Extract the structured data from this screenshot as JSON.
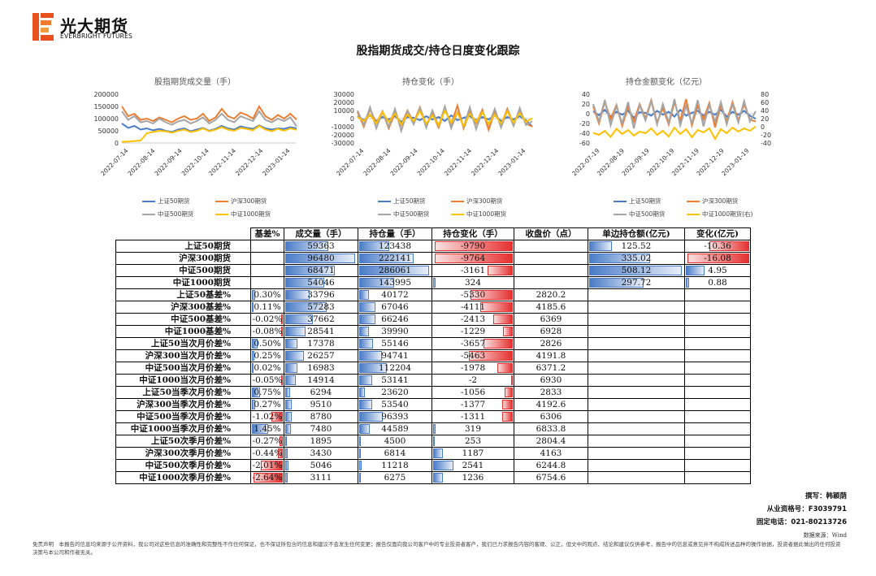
{
  "logo": {
    "cn": "光大期货",
    "en": "EVERBRIGHT FUTURES"
  },
  "title": "股指期货成交/持仓日度变化跟踪",
  "colors": {
    "sz50": "#4a7cc7",
    "hs300": "#ed7d31",
    "zz500": "#a5a5a5",
    "zz1000": "#ffc000",
    "pos": "#4a7cc7",
    "neg": "#e53030"
  },
  "chart_data": [
    {
      "type": "line",
      "title": "股指期货成交量（手）",
      "yticks": [
        "200000",
        "150000",
        "100000",
        "50000",
        "0"
      ],
      "ylim": [
        0,
        200000
      ],
      "xticks": [
        "2022-07-14",
        "2022-08-14",
        "2022-09-14",
        "2022-10-14",
        "2022-11-14",
        "2022-12-14",
        "2023-01-14"
      ],
      "series": [
        {
          "name": "上证50期货",
          "values": [
            80000,
            62000,
            70000,
            55000,
            60000,
            52000,
            58000,
            50000,
            45000,
            55000,
            60000,
            48000,
            55000,
            62000,
            50000,
            58000,
            70000,
            60000,
            55000,
            68000,
            62000,
            58000,
            72000,
            60000,
            55000,
            60000,
            58000,
            65000,
            60000
          ]
        },
        {
          "name": "沪深300期货",
          "values": [
            150000,
            110000,
            120000,
            95000,
            100000,
            90000,
            105000,
            95000,
            85000,
            100000,
            110000,
            95000,
            100000,
            120000,
            90000,
            105000,
            140000,
            110000,
            100000,
            125000,
            115000,
            100000,
            150000,
            110000,
            95000,
            115000,
            100000,
            120000,
            96000
          ]
        },
        {
          "name": "中证500期货",
          "values": [
            130000,
            95000,
            110000,
            85000,
            90000,
            80000,
            100000,
            85000,
            75000,
            88000,
            95000,
            80000,
            90000,
            105000,
            80000,
            95000,
            120000,
            95000,
            85000,
            110000,
            100000,
            90000,
            130000,
            95000,
            85000,
            100000,
            90000,
            105000,
            68000
          ]
        },
        {
          "name": "中证1000期货",
          "values": [
            5000,
            6000,
            8000,
            10000,
            40000,
            45000,
            50000,
            48000,
            42000,
            50000,
            55000,
            45000,
            50000,
            60000,
            48000,
            55000,
            65000,
            55000,
            50000,
            62000,
            58000,
            52000,
            70000,
            55000,
            48000,
            58000,
            50000,
            60000,
            54000
          ]
        }
      ],
      "legend": [
        "上证50期货",
        "沪深300期货",
        "中证500期货",
        "中证1000期货"
      ]
    },
    {
      "type": "line",
      "title": "持仓变化（手）",
      "yticks": [
        "30000",
        "20000",
        "10000",
        "0",
        "-10000",
        "-20000",
        "-30000"
      ],
      "ylim": [
        -30000,
        30000
      ],
      "xticks": [
        "2022-07-14",
        "2022-08-14",
        "2022-09-14",
        "2022-10-14",
        "2022-11-14",
        "2022-12-14",
        "2023-01-14"
      ],
      "series": [
        {
          "name": "上证50期货",
          "values": [
            3000,
            -2000,
            4000,
            -3000,
            2000,
            -1000,
            3000,
            -4000,
            2000,
            1000,
            -2000,
            3000,
            -1000,
            2000,
            -3000,
            4000,
            -2000,
            1000,
            3000,
            -2000,
            2000,
            -1000,
            4000,
            -3000,
            2000,
            -1000,
            3000,
            -2000,
            -9790
          ]
        },
        {
          "name": "沪深300期货",
          "values": [
            8000,
            -10000,
            12000,
            -6000,
            9000,
            -12000,
            7000,
            -8000,
            10000,
            -5000,
            14000,
            -9000,
            6000,
            -11000,
            12000,
            -7000,
            16000,
            -12000,
            8000,
            -6000,
            11000,
            -14000,
            9000,
            -8000,
            12000,
            -7000,
            10000,
            -6000,
            -9764
          ]
        },
        {
          "name": "中证500期货",
          "values": [
            10000,
            -8000,
            14000,
            -12000,
            8000,
            -10000,
            12000,
            -15000,
            9000,
            -7000,
            13000,
            -11000,
            10000,
            -9000,
            15000,
            -12000,
            8000,
            -10000,
            14000,
            -13000,
            9000,
            -8000,
            12000,
            -11000,
            10000,
            -9000,
            13000,
            -8000,
            -3161
          ]
        },
        {
          "name": "中证1000期货",
          "values": [
            2000,
            -3000,
            5000,
            -6000,
            8000,
            -4000,
            6000,
            -7000,
            5000,
            -3000,
            9000,
            -6000,
            4000,
            -8000,
            10000,
            -5000,
            7000,
            -9000,
            6000,
            -4000,
            8000,
            -7000,
            5000,
            -6000,
            9000,
            -5000,
            7000,
            -4000,
            324
          ]
        }
      ],
      "legend": [
        "上证50期货",
        "沪深300期货",
        "中证500期货",
        "中证1000期货"
      ]
    },
    {
      "type": "line",
      "title": "持仓金额变化（亿元）",
      "yticks": [
        "40",
        "20",
        "0",
        "-20",
        "-40",
        "-60"
      ],
      "ylim": [
        -60,
        40
      ],
      "y2ticks": [
        "80",
        "60",
        "40",
        "20",
        "0",
        "-20",
        "-40"
      ],
      "y2lim": [
        -40,
        80
      ],
      "xticks": [
        "2022-07-19",
        "2022-08-19",
        "2022-09-19",
        "2022-10-19",
        "2022-11-19",
        "2022-12-19",
        "2023-01-19"
      ],
      "series": [
        {
          "name": "上证50期货",
          "values": [
            5,
            -3,
            8,
            -6,
            4,
            -2,
            6,
            -8,
            3,
            2,
            -4,
            6,
            -2,
            4,
            -6,
            8,
            -4,
            2,
            6,
            -4,
            4,
            -2,
            8,
            -6,
            4,
            -2,
            6,
            -4,
            -10.36
          ]
        },
        {
          "name": "沪深300期货",
          "values": [
            15,
            -20,
            25,
            -12,
            18,
            -25,
            14,
            -16,
            20,
            -10,
            28,
            -18,
            12,
            -22,
            24,
            -14,
            30,
            -24,
            16,
            -12,
            22,
            -28,
            18,
            -16,
            24,
            -14,
            20,
            -12,
            -16.08
          ]
        },
        {
          "name": "中证500期货",
          "values": [
            20,
            -16,
            28,
            -24,
            16,
            -20,
            24,
            -30,
            18,
            -14,
            26,
            -22,
            20,
            -18,
            30,
            -24,
            16,
            -20,
            28,
            -26,
            18,
            -16,
            24,
            -22,
            20,
            -18,
            26,
            -16,
            4.95
          ]
        },
        {
          "name": "中证1000期货(右)",
          "values": [
            -15,
            -20,
            -10,
            -25,
            -5,
            -18,
            -8,
            -22,
            -12,
            -16,
            -4,
            -20,
            -10,
            -24,
            -2,
            -18,
            -6,
            -26,
            -8,
            -14,
            -4,
            -30,
            -6,
            -16,
            -2,
            -12,
            -4,
            -10,
            0.88
          ]
        }
      ],
      "legend": [
        "上证50期货",
        "沪深300期货",
        "中证500期货",
        "中证1000期货(右)"
      ]
    },
    {
      "type": "table",
      "columns": [
        "",
        "基差%",
        "成交量（手）",
        "持仓量（手）",
        "持仓变化（手）",
        "收盘价（点）",
        "单边持仓额(亿元)",
        "变化(亿元)"
      ],
      "rows": [
        {
          "label": "上证50期货",
          "basis": "",
          "basis_v": 0,
          "vol": "59363",
          "vol_v": 59363,
          "oi": "123438",
          "oi_v": 123438,
          "chg": "-9790",
          "chg_v": -9790,
          "close": "",
          "amt": "125.52",
          "amt_v": 125.52,
          "amtchg": "-10.36",
          "amtchg_v": -10.36
        },
        {
          "label": "沪深300期货",
          "basis": "",
          "basis_v": 0,
          "vol": "96480",
          "vol_v": 96480,
          "oi": "222141",
          "oi_v": 222141,
          "chg": "-9764",
          "chg_v": -9764,
          "close": "",
          "amt": "335.02",
          "amt_v": 335.02,
          "amtchg": "-16.08",
          "amtchg_v": -16.08
        },
        {
          "label": "中证500期货",
          "basis": "",
          "basis_v": 0,
          "vol": "68471",
          "vol_v": 68471,
          "oi": "286061",
          "oi_v": 286061,
          "chg": "-3161",
          "chg_v": -3161,
          "close": "",
          "amt": "508.12",
          "amt_v": 508.12,
          "amtchg": "4.95",
          "amtchg_v": 4.95
        },
        {
          "label": "中证1000期货",
          "basis": "",
          "basis_v": 0,
          "vol": "54046",
          "vol_v": 54046,
          "oi": "143995",
          "oi_v": 143995,
          "chg": "324",
          "chg_v": 324,
          "close": "",
          "amt": "297.72",
          "amt_v": 297.72,
          "amtchg": "0.88",
          "amtchg_v": 0.88
        },
        {
          "label": "上证50基差%",
          "basis": "0.30%",
          "basis_v": 0.3,
          "vol": "33796",
          "vol_v": 33796,
          "oi": "40172",
          "oi_v": 40172,
          "chg": "-5330",
          "chg_v": -5330,
          "close": "2820.2",
          "amt": "",
          "amt_v": 0,
          "amtchg": "",
          "amtchg_v": 0
        },
        {
          "label": "沪深300基差%",
          "basis": "0.11%",
          "basis_v": 0.11,
          "vol": "57283",
          "vol_v": 57283,
          "oi": "67046",
          "oi_v": 67046,
          "chg": "-4111",
          "chg_v": -4111,
          "close": "4185.6",
          "amt": "",
          "amt_v": 0,
          "amtchg": "",
          "amtchg_v": 0
        },
        {
          "label": "中证500基差%",
          "basis": "-0.02%",
          "basis_v": -0.02,
          "vol": "37662",
          "vol_v": 37662,
          "oi": "66246",
          "oi_v": 66246,
          "chg": "-2413",
          "chg_v": -2413,
          "close": "6369",
          "amt": "",
          "amt_v": 0,
          "amtchg": "",
          "amtchg_v": 0
        },
        {
          "label": "中证1000基差%",
          "basis": "-0.08%",
          "basis_v": -0.08,
          "vol": "28541",
          "vol_v": 28541,
          "oi": "39990",
          "oi_v": 39990,
          "chg": "-1229",
          "chg_v": -1229,
          "close": "6928",
          "amt": "",
          "amt_v": 0,
          "amtchg": "",
          "amtchg_v": 0
        },
        {
          "label": "上证50当次月价差%",
          "basis": "0.50%",
          "basis_v": 0.5,
          "vol": "17378",
          "vol_v": 17378,
          "oi": "55146",
          "oi_v": 55146,
          "chg": "-3657",
          "chg_v": -3657,
          "close": "2826",
          "amt": "",
          "amt_v": 0,
          "amtchg": "",
          "amtchg_v": 0
        },
        {
          "label": "沪深300当次月价差%",
          "basis": "0.25%",
          "basis_v": 0.25,
          "vol": "26257",
          "vol_v": 26257,
          "oi": "94741",
          "oi_v": 94741,
          "chg": "-5463",
          "chg_v": -5463,
          "close": "4191.8",
          "amt": "",
          "amt_v": 0,
          "amtchg": "",
          "amtchg_v": 0
        },
        {
          "label": "中证500当次月价差%",
          "basis": "0.02%",
          "basis_v": 0.02,
          "vol": "16983",
          "vol_v": 16983,
          "oi": "112204",
          "oi_v": 112204,
          "chg": "-1978",
          "chg_v": -1978,
          "close": "6371.2",
          "amt": "",
          "amt_v": 0,
          "amtchg": "",
          "amtchg_v": 0
        },
        {
          "label": "中证1000当次月价差%",
          "basis": "-0.05%",
          "basis_v": -0.05,
          "vol": "14914",
          "vol_v": 14914,
          "oi": "53141",
          "oi_v": 53141,
          "chg": "-2",
          "chg_v": -2,
          "close": "6930",
          "amt": "",
          "amt_v": 0,
          "amtchg": "",
          "amtchg_v": 0
        },
        {
          "label": "上证50当季次月价差%",
          "basis": "0.75%",
          "basis_v": 0.75,
          "vol": "6294",
          "vol_v": 6294,
          "oi": "23620",
          "oi_v": 23620,
          "chg": "-1056",
          "chg_v": -1056,
          "close": "2833",
          "amt": "",
          "amt_v": 0,
          "amtchg": "",
          "amtchg_v": 0
        },
        {
          "label": "沪深300当季次月价差%",
          "basis": "0.27%",
          "basis_v": 0.27,
          "vol": "9510",
          "vol_v": 9510,
          "oi": "53540",
          "oi_v": 53540,
          "chg": "-1377",
          "chg_v": -1377,
          "close": "4192.6",
          "amt": "",
          "amt_v": 0,
          "amtchg": "",
          "amtchg_v": 0
        },
        {
          "label": "中证500当季次月价差%",
          "basis": "-1.02%",
          "basis_v": -1.02,
          "vol": "8780",
          "vol_v": 8780,
          "oi": "96393",
          "oi_v": 96393,
          "chg": "-1311",
          "chg_v": -1311,
          "close": "6306",
          "amt": "",
          "amt_v": 0,
          "amtchg": "",
          "amtchg_v": 0
        },
        {
          "label": "中证1000当季次月价差%",
          "basis": "1.45%",
          "basis_v": 1.45,
          "vol": "7480",
          "vol_v": 7480,
          "oi": "44589",
          "oi_v": 44589,
          "chg": "319",
          "chg_v": 319,
          "close": "6833.8",
          "amt": "",
          "amt_v": 0,
          "amtchg": "",
          "amtchg_v": 0
        },
        {
          "label": "上证50次季月价差%",
          "basis": "-0.27%",
          "basis_v": -0.27,
          "vol": "1895",
          "vol_v": 1895,
          "oi": "4500",
          "oi_v": 4500,
          "chg": "253",
          "chg_v": 253,
          "close": "2804.4",
          "amt": "",
          "amt_v": 0,
          "amtchg": "",
          "amtchg_v": 0
        },
        {
          "label": "沪深300次季月价差%",
          "basis": "-0.44%",
          "basis_v": -0.44,
          "vol": "3430",
          "vol_v": 3430,
          "oi": "6814",
          "oi_v": 6814,
          "chg": "1187",
          "chg_v": 1187,
          "close": "4163",
          "amt": "",
          "amt_v": 0,
          "amtchg": "",
          "amtchg_v": 0
        },
        {
          "label": "中证500次季月价差%",
          "basis": "-2.01%",
          "basis_v": -2.01,
          "vol": "5046",
          "vol_v": 5046,
          "oi": "11218",
          "oi_v": 11218,
          "chg": "2541",
          "chg_v": 2541,
          "close": "6244.8",
          "amt": "",
          "amt_v": 0,
          "amtchg": "",
          "amtchg_v": 0
        },
        {
          "label": "中证1000次季月价差%",
          "basis": "-2.64%",
          "basis_v": -2.64,
          "vol": "3111",
          "vol_v": 3111,
          "oi": "6275",
          "oi_v": 6275,
          "chg": "1236",
          "chg_v": 1236,
          "close": "6754.6",
          "amt": "",
          "amt_v": 0,
          "amtchg": "",
          "amtchg_v": 0
        }
      ]
    }
  ],
  "footer": {
    "author": "撰写：韩颖荫",
    "license": "从业资格号：F3039791",
    "phone": "固定电话：021-80213726",
    "source": "数据来源：Wind",
    "disclaimer": "免责声明　本报告的信息均来源于公开资料，我公司对这些信息的准确性和完整性不作任何保证，也不保证所包含的信息和建议不会发生任何变更；报告仅面向我公司客户中的专业投资者客户，我们已力求报告内容的客观、公正，但文中的观点、结论和建议仅供参考，报告中的信息或意见并不构成所述品种的操作依据，投资者据此做出的任何投资决策与本公司和作者无关。"
  }
}
